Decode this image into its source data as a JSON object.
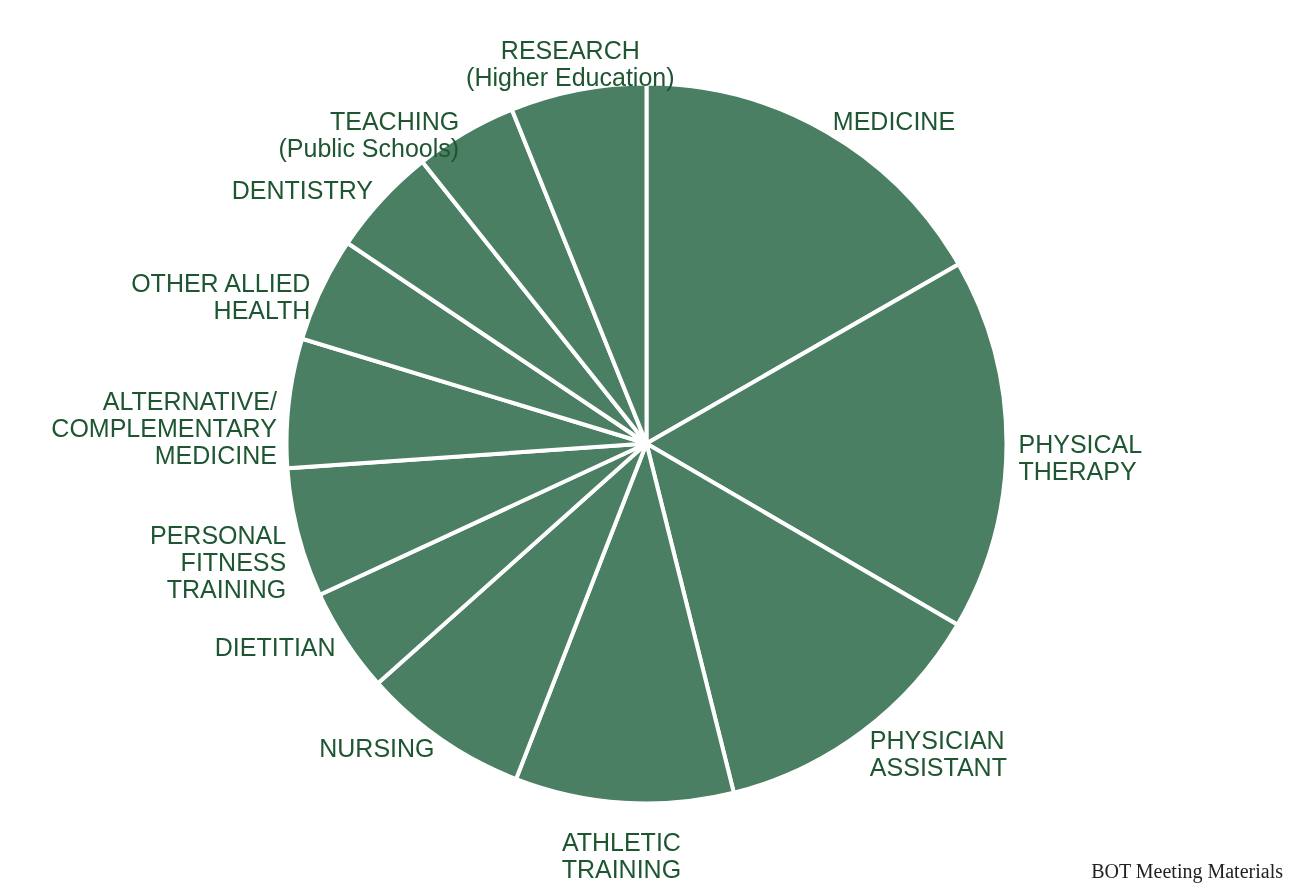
{
  "chart_data": {
    "type": "pie",
    "categories": [
      "MEDICINE",
      "PHYSICAL\nTHERAPY",
      "PHYSICIAN\nASSISTANT",
      "ATHLETIC\nTRAINING",
      "NURSING",
      "DIETITIAN",
      "PERSONAL\nFITNESS\nTRAINING",
      "ALTERNATIVE/\nCOMPLEMENTARY\nMEDICINE",
      "OTHER ALLIED\nHEALTH",
      "DENTISTRY",
      "TEACHING\n(Public Schools)",
      "RESEARCH\n(Higher Education)"
    ],
    "values": [
      16.7,
      16.7,
      12.7,
      9.8,
      7.5,
      4.7,
      5.8,
      5.8,
      4.7,
      4.9,
      4.6,
      6.1
    ],
    "colors": [
      "#4a7f63",
      "#4a7f63",
      "#4a7f63",
      "#4a7f63",
      "#4a7f63",
      "#4a7f63",
      "#4a7f63",
      "#4a7f63",
      "#4a7f63",
      "#4a7f63",
      "#4a7f63",
      "#4a7f63"
    ],
    "annotations": [
      "BOT Meeting Materials"
    ]
  }
}
